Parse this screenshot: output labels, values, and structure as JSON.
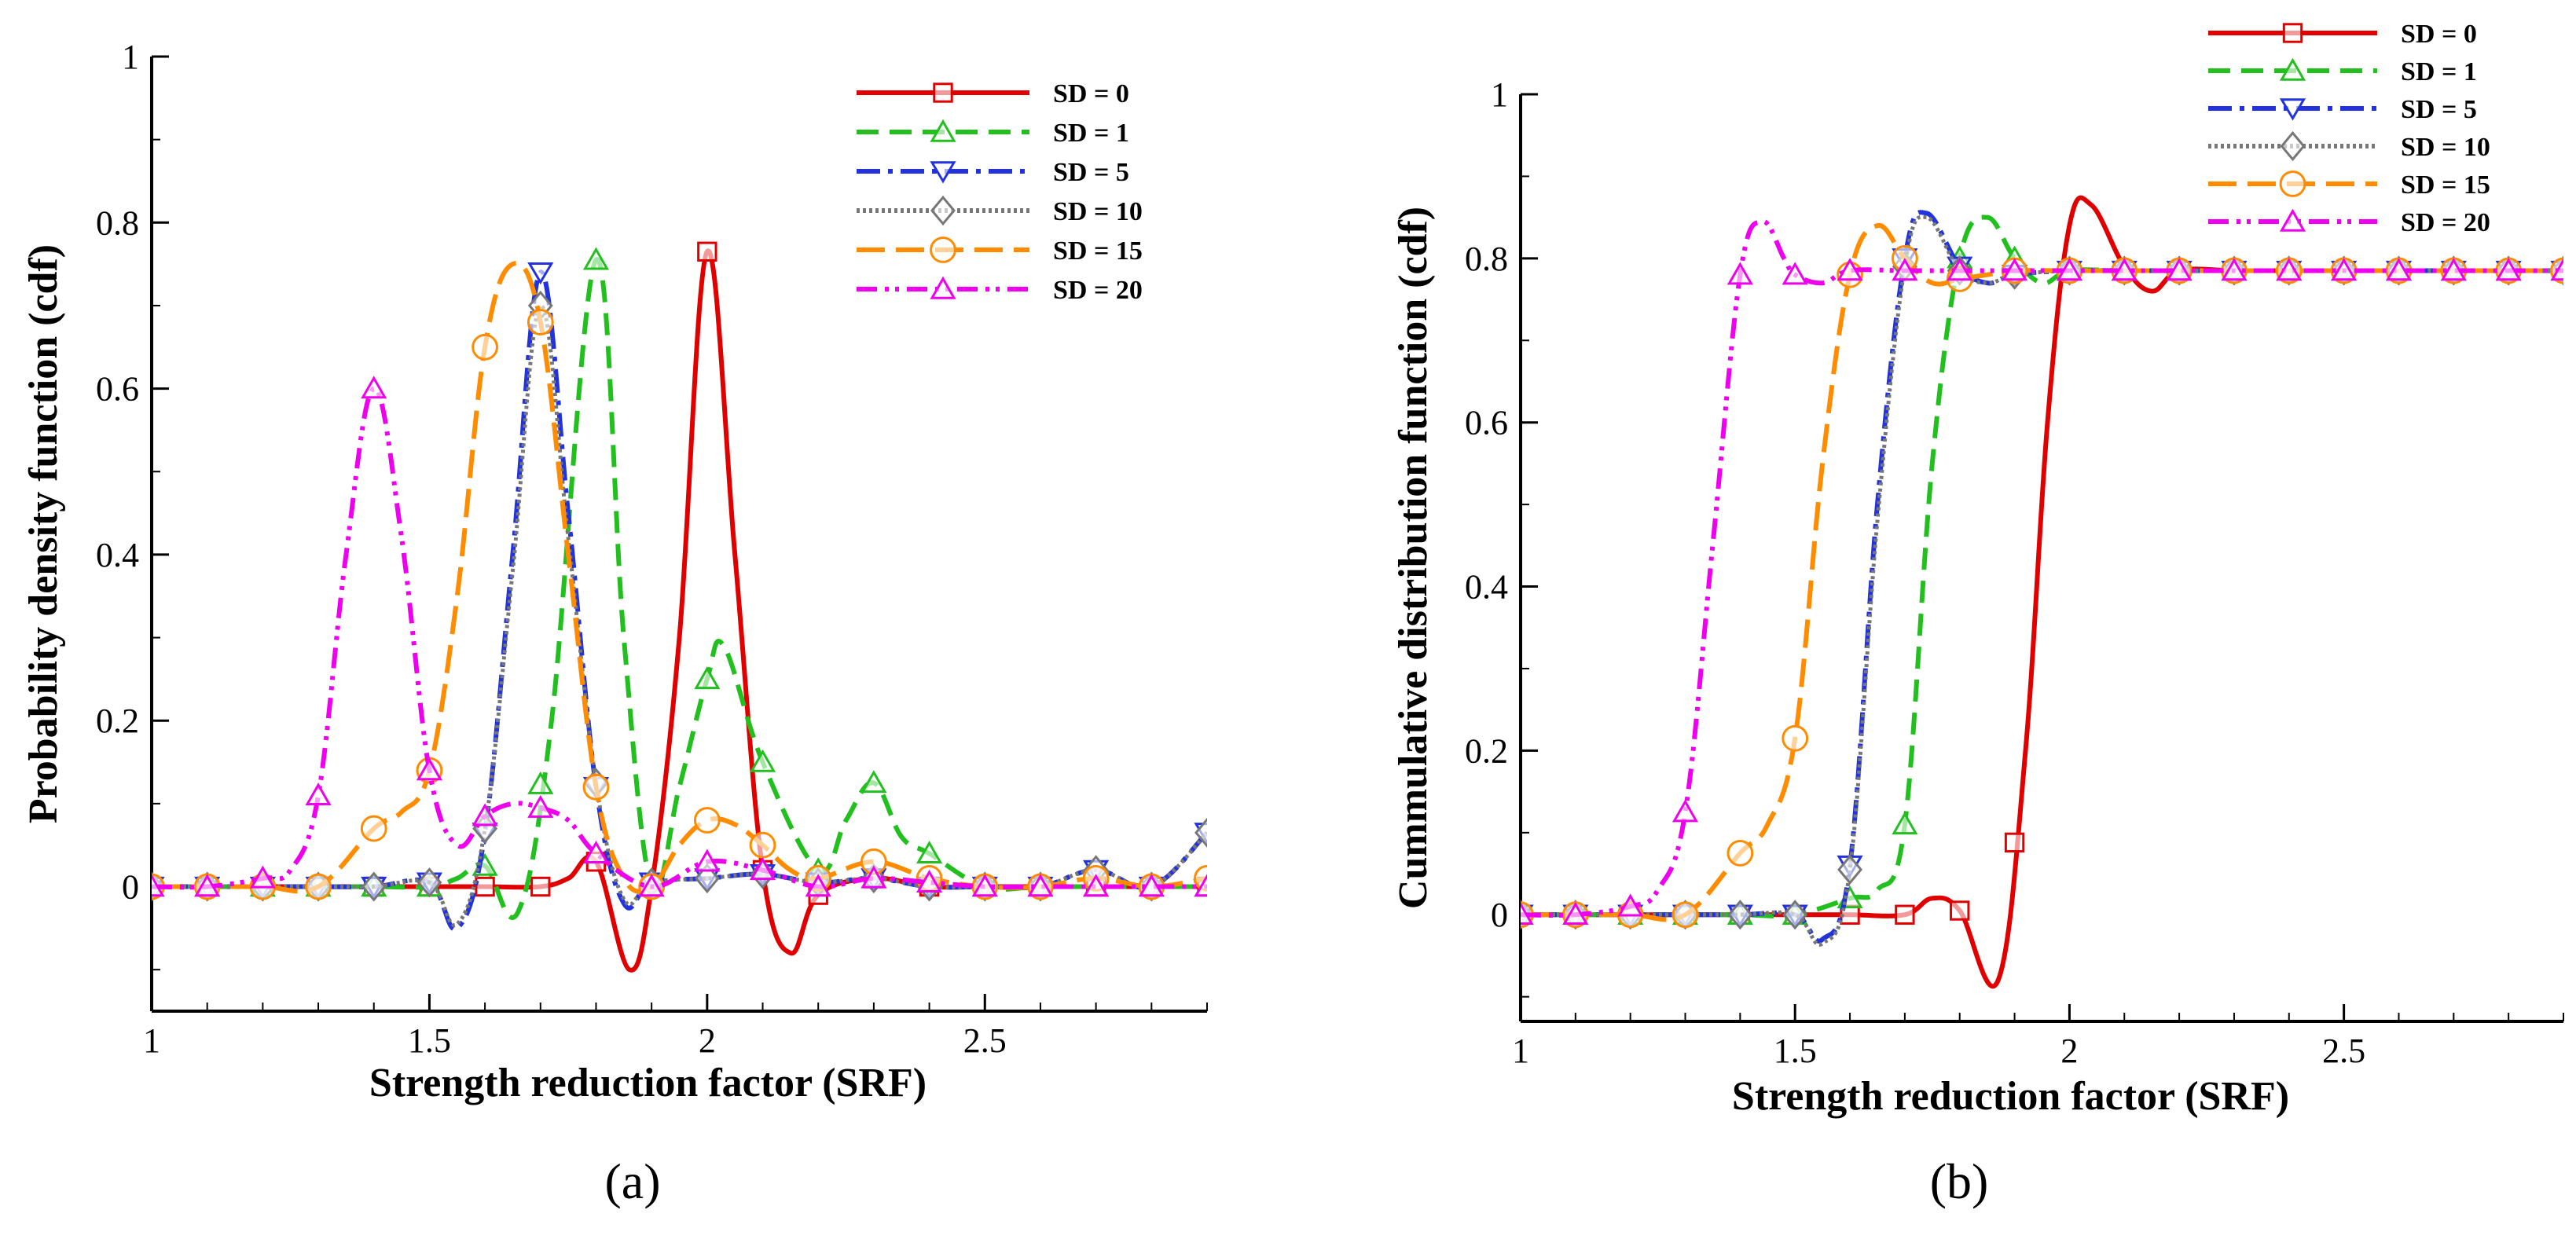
{
  "panels": [
    {
      "label": "(a)"
    },
    {
      "label": "(b)"
    }
  ],
  "series_styles": [
    {
      "name": "SD = 0",
      "color": "#e00000",
      "dash": "",
      "marker": "square"
    },
    {
      "name": "SD = 1",
      "color": "#22c01e",
      "dash": "28 14",
      "marker": "triangle-up"
    },
    {
      "name": "SD = 5",
      "color": "#2233dd",
      "dash": "30 10 6 10",
      "marker": "triangle-down"
    },
    {
      "name": "SD = 10",
      "color": "#777777",
      "dash": "4 4",
      "marker": "diamond"
    },
    {
      "name": "SD = 15",
      "color": "#ff8c00",
      "dash": "36 14",
      "marker": "circle"
    },
    {
      "name": "SD = 20",
      "color": "#ee00ee",
      "dash": "26 10 5 8 5 10",
      "marker": "triangle-up"
    }
  ],
  "chart_data": [
    {
      "type": "line",
      "title": "",
      "xlabel": "Strength reduction factor (SRF)",
      "ylabel": "Probability density function (cdf)",
      "xlim": [
        1,
        2.9
      ],
      "ylim": [
        -0.15,
        1.0
      ],
      "xticks": [
        "1",
        "1.5",
        "2",
        "2.5"
      ],
      "yticks": [
        "0",
        "0.2",
        "0.4",
        "0.6",
        "0.8",
        "1"
      ],
      "legend": "top-right",
      "grid": false,
      "series": [
        {
          "name": "SD = 0",
          "x": [
            1,
            1.1,
            1.2,
            1.3,
            1.4,
            1.5,
            1.6,
            1.7,
            1.75,
            1.8,
            1.86,
            1.9,
            1.95,
            2.0,
            2.05,
            2.1,
            2.15,
            2.2,
            2.3,
            2.4,
            2.5,
            2.6,
            2.7,
            2.8,
            2.9
          ],
          "y": [
            0,
            0,
            0,
            0,
            0,
            0,
            0,
            0,
            0.01,
            0.03,
            -0.1,
            0,
            0.3,
            0.765,
            0.4,
            0.02,
            -0.08,
            -0.01,
            0.01,
            0,
            0,
            0,
            0,
            0,
            0
          ],
          "markers_x": [
            1,
            1.1,
            1.2,
            1.3,
            1.4,
            1.5,
            1.6,
            1.7,
            1.8,
            1.9,
            2.0,
            2.1,
            2.2,
            2.3,
            2.4,
            2.5,
            2.6,
            2.7,
            2.8,
            2.9
          ]
        },
        {
          "name": "SD = 1",
          "x": [
            1,
            1.1,
            1.2,
            1.3,
            1.4,
            1.5,
            1.55,
            1.6,
            1.66,
            1.72,
            1.8,
            1.85,
            1.9,
            1.95,
            2.0,
            2.03,
            2.1,
            2.2,
            2.25,
            2.3,
            2.35,
            2.4,
            2.5,
            2.6,
            2.7,
            2.8,
            2.9
          ],
          "y": [
            0,
            0,
            0,
            0,
            0,
            0,
            0.01,
            0.025,
            -0.03,
            0.2,
            0.755,
            0.3,
            0,
            0.12,
            0.25,
            0.29,
            0.15,
            0.02,
            0.08,
            0.125,
            0.06,
            0.04,
            0,
            0,
            0,
            0,
            0
          ],
          "markers_x": [
            1,
            1.1,
            1.2,
            1.3,
            1.4,
            1.5,
            1.6,
            1.7,
            1.8,
            1.9,
            2.0,
            2.1,
            2.2,
            2.3,
            2.4,
            2.5,
            2.6,
            2.7,
            2.8,
            2.9
          ]
        },
        {
          "name": "SD = 5",
          "x": [
            1,
            1.1,
            1.2,
            1.3,
            1.4,
            1.5,
            1.55,
            1.6,
            1.65,
            1.7,
            1.75,
            1.8,
            1.85,
            1.9,
            2.0,
            2.1,
            2.2,
            2.3,
            2.4,
            2.5,
            2.6,
            2.7,
            2.8,
            2.9
          ],
          "y": [
            0,
            0,
            0,
            0,
            0,
            0.005,
            -0.05,
            0.065,
            0.4,
            0.74,
            0.45,
            0.12,
            -0.02,
            0.005,
            0.01,
            0.015,
            0.005,
            0.01,
            0,
            0,
            0,
            0.02,
            0,
            0.065
          ],
          "markers_x": [
            1,
            1.1,
            1.2,
            1.3,
            1.4,
            1.5,
            1.6,
            1.7,
            1.8,
            1.9,
            2.0,
            2.1,
            2.2,
            2.3,
            2.4,
            2.5,
            2.6,
            2.7,
            2.8,
            2.9
          ]
        },
        {
          "name": "SD = 10",
          "x": [
            1,
            1.1,
            1.2,
            1.3,
            1.4,
            1.5,
            1.55,
            1.6,
            1.65,
            1.7,
            1.75,
            1.8,
            1.85,
            1.9,
            2.0,
            2.1,
            2.2,
            2.3,
            2.4,
            2.5,
            2.6,
            2.7,
            2.8,
            2.9
          ],
          "y": [
            0,
            0,
            0,
            0,
            0,
            0.005,
            -0.045,
            0.07,
            0.38,
            0.7,
            0.42,
            0.125,
            -0.015,
            0.005,
            0.01,
            0.015,
            0.005,
            0.01,
            0,
            0,
            0,
            0.02,
            0,
            0.065
          ],
          "markers_x": [
            1,
            1.1,
            1.2,
            1.3,
            1.4,
            1.5,
            1.6,
            1.7,
            1.8,
            1.9,
            2.0,
            2.1,
            2.2,
            2.3,
            2.4,
            2.5,
            2.6,
            2.7,
            2.8,
            2.9
          ]
        },
        {
          "name": "SD = 15",
          "x": [
            1,
            1.1,
            1.2,
            1.3,
            1.4,
            1.45,
            1.5,
            1.55,
            1.6,
            1.65,
            1.7,
            1.75,
            1.8,
            1.85,
            1.9,
            1.95,
            2.0,
            2.05,
            2.1,
            2.15,
            2.2,
            2.3,
            2.4,
            2.5,
            2.6,
            2.7,
            2.8,
            2.9
          ],
          "y": [
            0,
            0,
            0,
            0,
            0.07,
            0.09,
            0.14,
            0.35,
            0.65,
            0.75,
            0.68,
            0.4,
            0.12,
            0.01,
            0,
            0.05,
            0.08,
            0.075,
            0.05,
            0.02,
            0.01,
            0.03,
            0.01,
            0,
            0,
            0.01,
            0,
            0.01
          ],
          "markers_x": [
            1,
            1.1,
            1.2,
            1.3,
            1.4,
            1.5,
            1.6,
            1.7,
            1.8,
            1.9,
            2.0,
            2.1,
            2.2,
            2.3,
            2.4,
            2.5,
            2.6,
            2.7,
            2.8,
            2.9
          ]
        },
        {
          "name": "SD = 20",
          "x": [
            1,
            1.1,
            1.2,
            1.25,
            1.3,
            1.35,
            1.4,
            1.45,
            1.5,
            1.55,
            1.6,
            1.65,
            1.7,
            1.75,
            1.8,
            1.9,
            2.0,
            2.1,
            2.2,
            2.3,
            2.4,
            2.5,
            2.6,
            2.7,
            2.8,
            2.9
          ],
          "y": [
            0,
            0,
            0.01,
            0.02,
            0.11,
            0.4,
            0.6,
            0.42,
            0.14,
            0.05,
            0.085,
            0.1,
            0.095,
            0.08,
            0.04,
            0,
            0.03,
            0.02,
            0,
            0.01,
            0.005,
            0,
            0,
            0,
            0,
            0
          ],
          "markers_x": [
            1,
            1.1,
            1.2,
            1.3,
            1.4,
            1.5,
            1.6,
            1.7,
            1.8,
            1.9,
            2.0,
            2.1,
            2.2,
            2.3,
            2.4,
            2.5,
            2.6,
            2.7,
            2.8,
            2.9
          ]
        }
      ]
    },
    {
      "type": "line",
      "title": "",
      "xlabel": "Strength reduction factor (SRF)",
      "ylabel": "Cummulative distribution function (cdf)",
      "xlim": [
        1,
        2.9
      ],
      "ylim": [
        -0.13,
        1.0
      ],
      "xticks": [
        "1",
        "1.5",
        "2",
        "2.5"
      ],
      "yticks": [
        "0",
        "0.2",
        "0.4",
        "0.6",
        "0.8",
        "1"
      ],
      "legend": "top-right",
      "grid": false,
      "series": [
        {
          "name": "SD = 0",
          "x": [
            1,
            1.1,
            1.2,
            1.3,
            1.4,
            1.5,
            1.6,
            1.7,
            1.75,
            1.8,
            1.87,
            1.92,
            1.96,
            2.0,
            2.04,
            2.1,
            2.15,
            2.2,
            2.3,
            2.4,
            2.5,
            2.6,
            2.7,
            2.8,
            2.9
          ],
          "y": [
            0,
            0,
            0,
            0,
            0,
            0,
            0,
            0,
            0.02,
            0.005,
            -0.08,
            0.2,
            0.6,
            0.84,
            0.865,
            0.79,
            0.76,
            0.785,
            0.785,
            0.785,
            0.785,
            0.785,
            0.785,
            0.785,
            0.785
          ],
          "markers_x": [
            1,
            1.1,
            1.2,
            1.3,
            1.4,
            1.5,
            1.6,
            1.7,
            1.8,
            1.9
          ]
        },
        {
          "name": "SD = 1",
          "x": [
            1,
            1.1,
            1.2,
            1.3,
            1.4,
            1.5,
            1.6,
            1.65,
            1.7,
            1.75,
            1.8,
            1.85,
            1.9,
            1.95,
            2.0,
            2.1,
            2.2,
            2.3,
            2.4,
            2.5,
            2.6,
            2.7,
            2.8,
            2.9
          ],
          "y": [
            0,
            0,
            0,
            0,
            0,
            0,
            0.02,
            0.03,
            0.11,
            0.55,
            0.8,
            0.85,
            0.8,
            0.77,
            0.785,
            0.785,
            0.785,
            0.785,
            0.785,
            0.785,
            0.785,
            0.785,
            0.785,
            0.785
          ],
          "markers_x": [
            1,
            1.1,
            1.2,
            1.3,
            1.4,
            1.5,
            1.6,
            1.7,
            1.8,
            1.9,
            2.0,
            2.1,
            2.2,
            2.3,
            2.4,
            2.5,
            2.6,
            2.7,
            2.8,
            2.9
          ]
        },
        {
          "name": "SD = 5",
          "x": [
            1,
            1.1,
            1.2,
            1.3,
            1.4,
            1.5,
            1.55,
            1.6,
            1.65,
            1.7,
            1.74,
            1.8,
            1.85,
            1.9,
            2.0,
            2.1,
            2.2,
            2.3,
            2.4,
            2.5,
            2.6,
            2.7,
            2.8,
            2.9
          ],
          "y": [
            0,
            0,
            0,
            0,
            0,
            0,
            -0.03,
            0.06,
            0.5,
            0.8,
            0.855,
            0.79,
            0.77,
            0.78,
            0.785,
            0.785,
            0.785,
            0.785,
            0.785,
            0.785,
            0.785,
            0.785,
            0.785,
            0.785
          ],
          "markers_x": [
            1,
            1.1,
            1.2,
            1.3,
            1.4,
            1.5,
            1.6,
            1.7,
            1.8,
            1.9,
            2.0,
            2.1,
            2.2,
            2.3,
            2.4,
            2.5,
            2.6,
            2.7,
            2.8,
            2.9
          ]
        },
        {
          "name": "SD = 10",
          "x": [
            1,
            1.1,
            1.2,
            1.3,
            1.4,
            1.5,
            1.55,
            1.6,
            1.65,
            1.7,
            1.74,
            1.8,
            1.85,
            1.9,
            2.0,
            2.1,
            2.2,
            2.3,
            2.4,
            2.5,
            2.6,
            2.7,
            2.8,
            2.9
          ],
          "y": [
            0,
            0,
            0,
            0,
            0,
            0,
            -0.035,
            0.055,
            0.48,
            0.79,
            0.85,
            0.785,
            0.77,
            0.78,
            0.785,
            0.785,
            0.785,
            0.785,
            0.785,
            0.785,
            0.785,
            0.785,
            0.785,
            0.785
          ],
          "markers_x": [
            1,
            1.1,
            1.2,
            1.3,
            1.4,
            1.5,
            1.6,
            1.7,
            1.8,
            1.9,
            2.0,
            2.1,
            2.2,
            2.3,
            2.4,
            2.5,
            2.6,
            2.7,
            2.8,
            2.9
          ]
        },
        {
          "name": "SD = 15",
          "x": [
            1,
            1.1,
            1.2,
            1.3,
            1.4,
            1.45,
            1.5,
            1.55,
            1.6,
            1.65,
            1.7,
            1.75,
            1.8,
            1.85,
            1.9,
            2.0,
            2.1,
            2.2,
            2.3,
            2.4,
            2.5,
            2.6,
            2.7,
            2.8,
            2.9
          ],
          "y": [
            0,
            0,
            0,
            0,
            0.075,
            0.11,
            0.215,
            0.55,
            0.78,
            0.84,
            0.8,
            0.77,
            0.775,
            0.78,
            0.785,
            0.785,
            0.785,
            0.785,
            0.785,
            0.785,
            0.785,
            0.785,
            0.785,
            0.785,
            0.785
          ],
          "markers_x": [
            1,
            1.1,
            1.2,
            1.3,
            1.4,
            1.5,
            1.6,
            1.7,
            1.8,
            1.9,
            2.0,
            2.1,
            2.2,
            2.3,
            2.4,
            2.5,
            2.6,
            2.7,
            2.8,
            2.9
          ]
        },
        {
          "name": "SD = 20",
          "x": [
            1,
            1.1,
            1.2,
            1.25,
            1.3,
            1.35,
            1.4,
            1.44,
            1.48,
            1.5,
            1.55,
            1.6,
            1.7,
            1.8,
            1.9,
            2.0,
            2.1,
            2.2,
            2.3,
            2.4,
            2.5,
            2.6,
            2.7,
            2.8,
            2.9
          ],
          "y": [
            0,
            0,
            0.01,
            0.03,
            0.125,
            0.45,
            0.78,
            0.845,
            0.8,
            0.78,
            0.77,
            0.785,
            0.785,
            0.785,
            0.785,
            0.785,
            0.785,
            0.785,
            0.785,
            0.785,
            0.785,
            0.785,
            0.785,
            0.785,
            0.785
          ],
          "markers_x": [
            1,
            1.1,
            1.2,
            1.3,
            1.4,
            1.5,
            1.6,
            1.7,
            1.8,
            1.9,
            2.0,
            2.1,
            2.2,
            2.3,
            2.4,
            2.5,
            2.6,
            2.7,
            2.8,
            2.9
          ]
        }
      ]
    }
  ]
}
